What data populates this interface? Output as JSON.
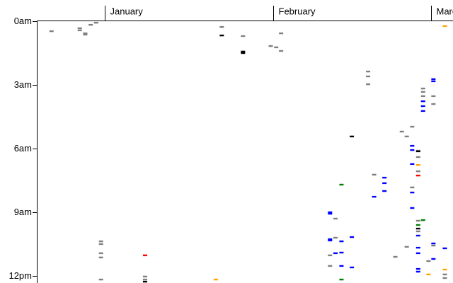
{
  "chart_data": {
    "type": "scatter",
    "xlim": [
      -12.5,
      64
    ],
    "ylim": [
      0,
      12.3
    ],
    "xticks": [
      {
        "value": 0,
        "label": "January"
      },
      {
        "value": 31,
        "label": "February"
      },
      {
        "value": 60,
        "label": "March"
      }
    ],
    "yticks": [
      {
        "value": 0,
        "label": "0am"
      },
      {
        "value": 3,
        "label": "3am"
      },
      {
        "value": 6,
        "label": "6am"
      },
      {
        "value": 9,
        "label": "9am"
      },
      {
        "value": 12,
        "label": "12pm"
      }
    ],
    "series": [
      {
        "color": "#808080",
        "x": [
          -9.8,
          -4.6,
          -4.6,
          -3.6,
          -3.6,
          -2.6,
          -1.6,
          21.5,
          25.4,
          30.5,
          31.5,
          32.4,
          32.4,
          48.4,
          48.4,
          48.4,
          54.6,
          56.5,
          55.5,
          58.5,
          58.5,
          58.5,
          60.4,
          60.4,
          49.5,
          56.5,
          57.6,
          57.6,
          57.6,
          42.4,
          42.4,
          41.4,
          41.4,
          -0.7,
          -0.7,
          -0.7,
          -0.7,
          -0.7,
          7.4,
          7.4,
          53.4,
          55.5,
          57.6,
          57.6,
          59.5,
          60.4,
          62.5,
          62.5
        ],
        "values": [
          0.47,
          0.33,
          0.43,
          0.57,
          0.63,
          0.17,
          0.07,
          0.27,
          0.7,
          1.17,
          1.23,
          1.4,
          0.57,
          2.37,
          2.6,
          2.97,
          5.2,
          4.97,
          5.43,
          3.17,
          3.33,
          3.53,
          3.53,
          3.9,
          7.23,
          7.83,
          6.1,
          6.4,
          7.07,
          9.3,
          10.2,
          11.03,
          11.53,
          10.37,
          10.5,
          10.93,
          11.13,
          12.17,
          12.03,
          12.17,
          11.1,
          10.63,
          9.4,
          9.9,
          11.3,
          10.57,
          11.93,
          12.1
        ]
      },
      {
        "color": "#000000",
        "x": [
          21.5,
          25.4,
          25.4,
          45.4,
          57.6,
          7.4,
          57.6
        ],
        "values": [
          0.67,
          1.43,
          1.5,
          5.43,
          6.13,
          12.27,
          9.77
        ]
      },
      {
        "color": "#0000ff",
        "x": [
          41.4,
          41.4,
          41.4,
          41.4,
          43.5,
          42.4,
          43.5,
          45.4,
          43.5,
          45.4,
          51.4,
          51.4,
          51.4,
          49.5,
          56.5,
          56.5,
          56.5,
          56.5,
          56.5,
          58.5,
          58.5,
          58.5,
          60.4,
          60.4,
          57.6,
          57.6,
          57.6,
          57.6,
          57.6,
          60.4,
          60.4,
          62.5
        ],
        "values": [
          9,
          9.07,
          10.27,
          10.33,
          10.37,
          10.93,
          10.9,
          10.17,
          11.53,
          11.6,
          7.37,
          7.63,
          8,
          8.27,
          5.87,
          6.07,
          6.73,
          8.07,
          8.8,
          3.77,
          4,
          4.23,
          2.73,
          2.83,
          10.1,
          10.67,
          10.93,
          11.67,
          11.8,
          10.47,
          11.2,
          10.7
        ]
      },
      {
        "color": "#ff0000",
        "x": [
          7.4,
          57.6
        ],
        "values": [
          11.03,
          7.27
        ]
      },
      {
        "color": "#008000",
        "x": [
          43.5,
          58.5,
          43.5,
          57.6
        ],
        "values": [
          7.7,
          9.37,
          12.17,
          9.6
        ]
      },
      {
        "color": "#ffa500",
        "x": [
          62.5,
          20.4,
          57.6,
          59.5,
          62.5
        ],
        "values": [
          0.23,
          12.17,
          6.77,
          11.93,
          11.7
        ]
      }
    ]
  }
}
